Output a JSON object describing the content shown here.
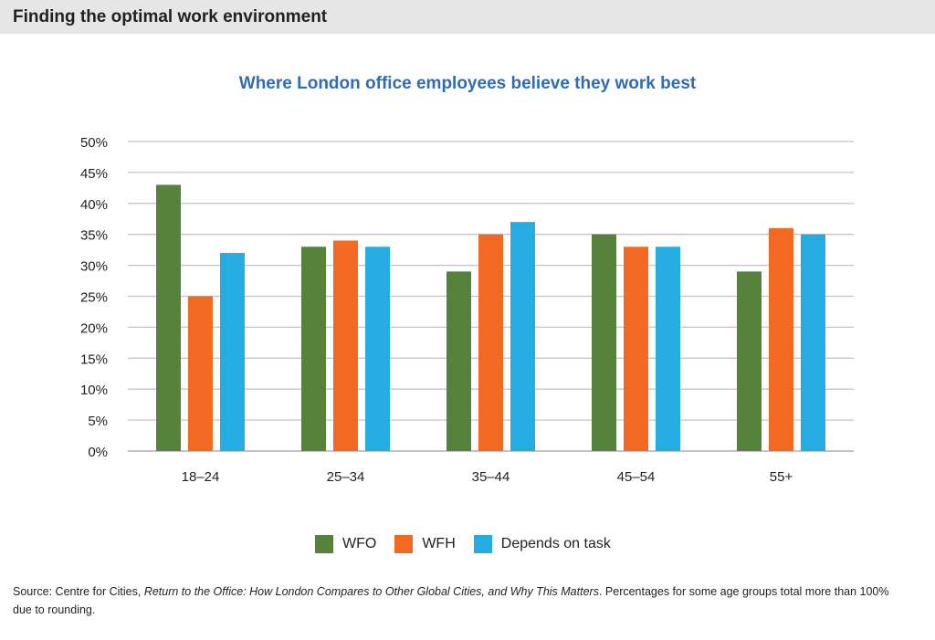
{
  "header": {
    "title": "Finding the optimal work environment"
  },
  "chart_data": {
    "type": "bar",
    "title": "Where London office employees believe they work best",
    "categories": [
      "18–24",
      "25–34",
      "35–44",
      "45–54",
      "55+"
    ],
    "series": [
      {
        "name": "WFO",
        "color": "#55833b",
        "values": [
          43,
          33,
          29,
          35,
          29
        ]
      },
      {
        "name": "WFH",
        "color": "#f26a22",
        "values": [
          25,
          34,
          35,
          33,
          36
        ]
      },
      {
        "name": "Depends on task",
        "color": "#25ace2",
        "values": [
          32,
          33,
          37,
          33,
          35
        ]
      }
    ],
    "yticks": [
      "0%",
      "5%",
      "10%",
      "15%",
      "20%",
      "25%",
      "30%",
      "35%",
      "40%",
      "45%",
      "50%"
    ],
    "ylim": [
      0,
      50
    ],
    "grid": true,
    "legend": "bottom"
  },
  "source": {
    "prefix": "Source: Centre for Cities, ",
    "italic": "Return to the Office: How London Compares to Other Global Cities, and Why This Matters",
    "suffix": ". Percentages for some age groups total more than 100% due to rounding."
  }
}
